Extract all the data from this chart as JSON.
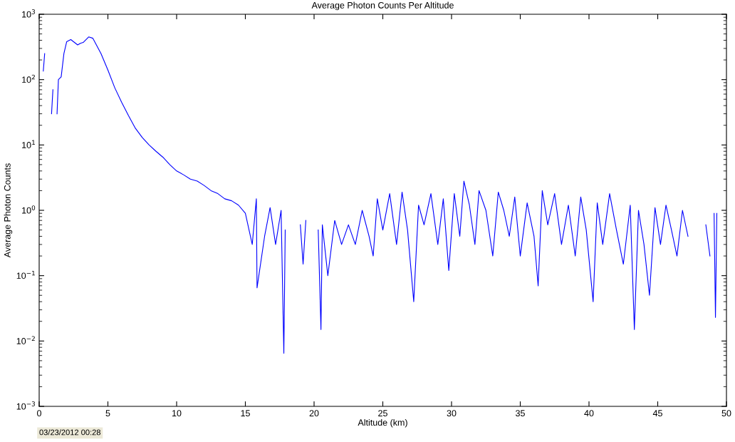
{
  "chart_data": {
    "type": "line",
    "title": "Average Photon Counts Per Altitude",
    "xlabel": "Altitude (km)",
    "ylabel": "Average Photon Counts",
    "annotations": [
      "03/23/2012 00:28"
    ],
    "log": "y",
    "grid": false,
    "marker": "none",
    "line_style": "solid",
    "xlim": [
      0,
      50
    ],
    "xticks": [
      0,
      5,
      10,
      15,
      20,
      25,
      30,
      35,
      40,
      45,
      50
    ],
    "ylim": [
      0.001,
      1000
    ],
    "yticks": [
      {
        "value": 0.001,
        "label": "10$^{−3}$"
      },
      {
        "value": 0.01,
        "label": "10$^{−2}$"
      },
      {
        "value": 0.1,
        "label": "10$^{−1}$"
      },
      {
        "value": 1,
        "label": "10$^{0}$"
      },
      {
        "value": 10,
        "label": "10$^{1}$"
      },
      {
        "value": 100,
        "label": "10$^{2}$"
      },
      {
        "value": 1000,
        "label": "10$^{3}$"
      }
    ],
    "series": [
      {
        "color": "#0000ff",
        "x": [
          0.3,
          0.4,
          0.6,
          0.9,
          1.0,
          1.1,
          1.3,
          1.4,
          1.6,
          1.8,
          2.0,
          2.3,
          2.5,
          2.8,
          3.0,
          3.2,
          3.6,
          3.9,
          4.5,
          5.0,
          5.5,
          6.0,
          6.5,
          7.0,
          7.5,
          8.0,
          8.5,
          9.0,
          9.5,
          10.0,
          10.5,
          11.0,
          11.5,
          12.0,
          12.5,
          13.0,
          13.5,
          14.0,
          14.5,
          15.0,
          15.5,
          15.8,
          15.85,
          16.4,
          16.8,
          17.2,
          17.6,
          17.8,
          17.9,
          18.3,
          19.0,
          19.2,
          19.4,
          19.7,
          20.3,
          20.5,
          20.6,
          21.0,
          21.5,
          22.0,
          22.5,
          23.0,
          23.5,
          24.0,
          24.3,
          24.6,
          25.0,
          25.5,
          26.0,
          26.4,
          26.8,
          27.25,
          27.6,
          28.0,
          28.5,
          29.0,
          29.4,
          29.8,
          30.2,
          30.6,
          30.9,
          31.3,
          31.7,
          32.0,
          32.5,
          33.0,
          33.4,
          33.8,
          34.2,
          34.6,
          35.0,
          35.5,
          36.0,
          36.3,
          36.6,
          37.0,
          37.5,
          38.0,
          38.5,
          39.0,
          39.4,
          39.8,
          40.3,
          40.6,
          41.0,
          41.5,
          42.0,
          42.5,
          43.0,
          43.3,
          43.6,
          44.0,
          44.4,
          44.8,
          45.2,
          45.6,
          46.0,
          46.4,
          46.8,
          47.2,
          47.8,
          48.5,
          48.8,
          49.0,
          49.1,
          49.2,
          49.3
        ],
        "values": [
          135,
          250,
          null,
          30,
          70,
          null,
          30,
          100,
          110,
          250,
          380,
          410,
          380,
          340,
          360,
          370,
          450,
          430,
          250,
          140,
          75,
          45,
          28,
          18,
          13,
          10,
          8,
          6.5,
          5,
          4,
          3.5,
          3,
          2.8,
          2.4,
          2,
          1.8,
          1.5,
          1.4,
          1.2,
          0.9,
          0.3,
          1.5,
          0.065,
          0.4,
          1.1,
          0.3,
          1.0,
          0.0065,
          0.5,
          null,
          0.6,
          0.15,
          0.7,
          null,
          0.5,
          0.015,
          0.6,
          0.1,
          0.7,
          0.3,
          0.6,
          0.3,
          1.0,
          0.4,
          0.2,
          1.5,
          0.5,
          1.8,
          0.3,
          1.9,
          0.5,
          0.04,
          1.2,
          0.6,
          1.8,
          0.3,
          1.5,
          0.12,
          1.8,
          0.4,
          2.8,
          1.2,
          0.3,
          2.0,
          1.0,
          0.2,
          1.9,
          1.0,
          0.4,
          1.6,
          0.2,
          1.3,
          0.4,
          0.07,
          2.0,
          0.6,
          1.8,
          0.3,
          1.2,
          0.2,
          1.6,
          0.5,
          0.04,
          1.3,
          0.3,
          1.8,
          0.5,
          0.15,
          1.2,
          0.015,
          1.0,
          0.3,
          0.05,
          1.1,
          0.3,
          1.2,
          0.5,
          0.2,
          1.0,
          0.4,
          null,
          0.6,
          0.2,
          null,
          0.9,
          0.023,
          0.9
        ]
      }
    ]
  }
}
